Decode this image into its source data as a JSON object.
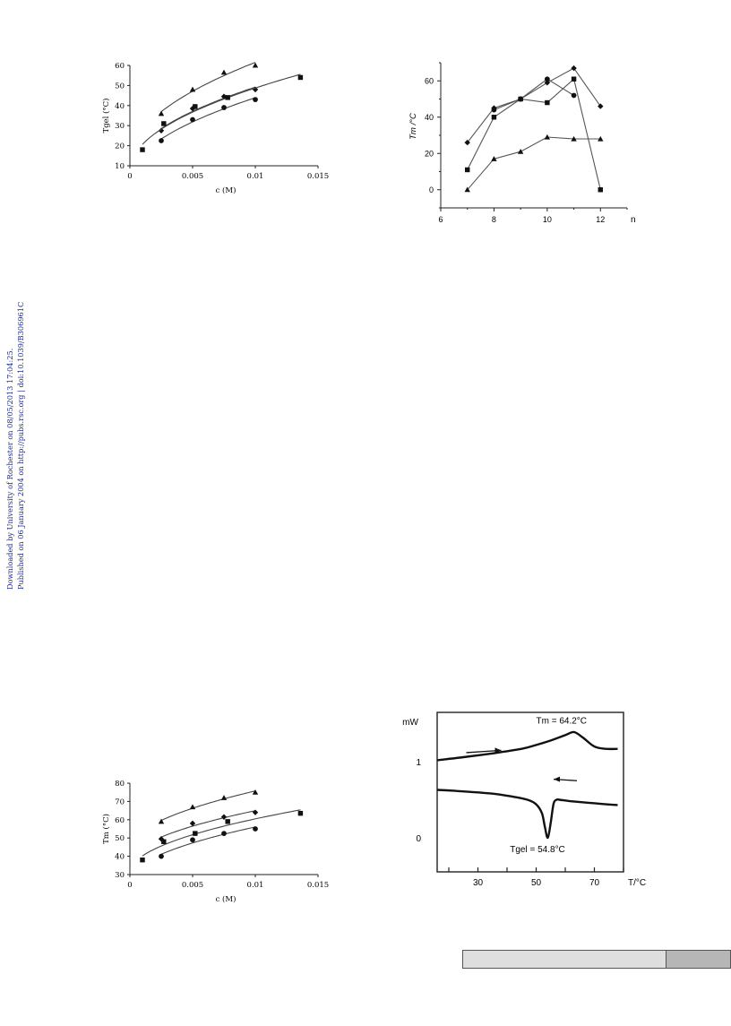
{
  "side_note": {
    "line1": "Downloaded by University of Rochester on 08/05/2013 17:04:25.",
    "line2": "Published on 06 January 2004 on http://pubs.rsc.org | doi:10.1039/B306961C"
  },
  "chart_data": [
    {
      "id": "tgel-vs-c",
      "type": "scatter",
      "xlabel": "c (M)",
      "ylabel": "Tgel (°C)",
      "xlim": [
        0,
        0.015
      ],
      "ylim": [
        10,
        60
      ],
      "xticks": [
        "0",
        "0.005",
        "0.01",
        "0.015"
      ],
      "yticks": [
        "10",
        "20",
        "30",
        "40",
        "50",
        "60"
      ],
      "series": [
        {
          "marker": "triangle",
          "x": [
            0.0025,
            0.005,
            0.0075,
            0.01
          ],
          "y": [
            36,
            48,
            56.5,
            60
          ]
        },
        {
          "marker": "diamond",
          "x": [
            0.0025,
            0.005,
            0.0075,
            0.01
          ],
          "y": [
            27.5,
            38.5,
            44.5,
            48
          ]
        },
        {
          "marker": "square",
          "x": [
            0.001,
            0.0027,
            0.0052,
            0.0078,
            0.0136
          ],
          "y": [
            18,
            31,
            39.5,
            44,
            54
          ]
        },
        {
          "marker": "circle",
          "x": [
            0.0025,
            0.005,
            0.0075,
            0.01
          ],
          "y": [
            22.5,
            33,
            39,
            43
          ]
        }
      ]
    },
    {
      "id": "tm-vs-n",
      "type": "line",
      "xlabel": "n",
      "ylabel": "Tm /°C",
      "xlim": [
        6,
        13
      ],
      "ylim": [
        -10,
        70
      ],
      "xticks": [
        "6",
        "8",
        "10",
        "12"
      ],
      "yticks": [
        "0",
        "20",
        "40",
        "60"
      ],
      "series": [
        {
          "marker": "diamond",
          "x": [
            7,
            8,
            9,
            10,
            11,
            12
          ],
          "y": [
            26,
            45,
            50,
            59,
            67,
            46
          ]
        },
        {
          "marker": "square",
          "x": [
            7,
            8,
            9,
            10,
            11,
            12
          ],
          "y": [
            11,
            40,
            50,
            48,
            61,
            0
          ]
        },
        {
          "marker": "circle",
          "x": [
            8,
            9,
            10,
            11
          ],
          "y": [
            44,
            50,
            61,
            52
          ]
        },
        {
          "marker": "triangle",
          "x": [
            7,
            8,
            9,
            10,
            11,
            12
          ],
          "y": [
            0,
            17,
            21,
            29,
            28,
            28
          ]
        }
      ]
    },
    {
      "id": "tm-vs-c",
      "type": "scatter",
      "xlabel": "c (M)",
      "ylabel": "Tm (°C)",
      "xlim": [
        0,
        0.015
      ],
      "ylim": [
        30,
        80
      ],
      "xticks": [
        "0",
        "0.005",
        "0.01",
        "0.015"
      ],
      "yticks": [
        "30",
        "40",
        "50",
        "60",
        "70",
        "80"
      ],
      "series": [
        {
          "marker": "triangle",
          "x": [
            0.0025,
            0.005,
            0.0075,
            0.01
          ],
          "y": [
            59,
            67,
            72,
            75
          ]
        },
        {
          "marker": "diamond",
          "x": [
            0.0025,
            0.005,
            0.0075,
            0.01
          ],
          "y": [
            49.5,
            58,
            61.5,
            64
          ]
        },
        {
          "marker": "square",
          "x": [
            0.001,
            0.0027,
            0.0052,
            0.0078,
            0.0136
          ],
          "y": [
            38,
            48,
            52.5,
            59,
            63.5
          ]
        },
        {
          "marker": "circle",
          "x": [
            0.0025,
            0.005,
            0.0075,
            0.01
          ],
          "y": [
            40,
            49,
            52.5,
            55
          ]
        }
      ]
    },
    {
      "id": "dsc-trace",
      "type": "line",
      "xlabel": "T/°C",
      "ylabel": "mW",
      "xlim": [
        16,
        80
      ],
      "ylim": [
        -0.45,
        1.65
      ],
      "xticks": [
        "30",
        "50",
        "70"
      ],
      "yticks": [
        "0",
        "1"
      ],
      "annotations": {
        "tm": "Tm = 64.2°C",
        "tgel": "Tgel = 54.8°C"
      },
      "series": [
        {
          "name": "heating",
          "x": [
            16,
            25,
            35,
            45,
            50,
            55,
            60,
            63,
            66,
            70,
            74,
            78
          ],
          "y": [
            1.02,
            1.06,
            1.11,
            1.17,
            1.22,
            1.28,
            1.35,
            1.39,
            1.32,
            1.2,
            1.17,
            1.17
          ]
        },
        {
          "name": "cooling",
          "x": [
            16,
            25,
            35,
            42,
            47,
            50,
            52,
            53,
            54,
            55,
            56,
            57,
            58,
            62,
            68,
            74,
            78
          ],
          "y": [
            0.63,
            0.61,
            0.58,
            0.54,
            0.5,
            0.44,
            0.32,
            0.14,
            0.0,
            0.2,
            0.45,
            0.5,
            0.5,
            0.48,
            0.46,
            0.44,
            0.43
          ]
        }
      ]
    }
  ]
}
